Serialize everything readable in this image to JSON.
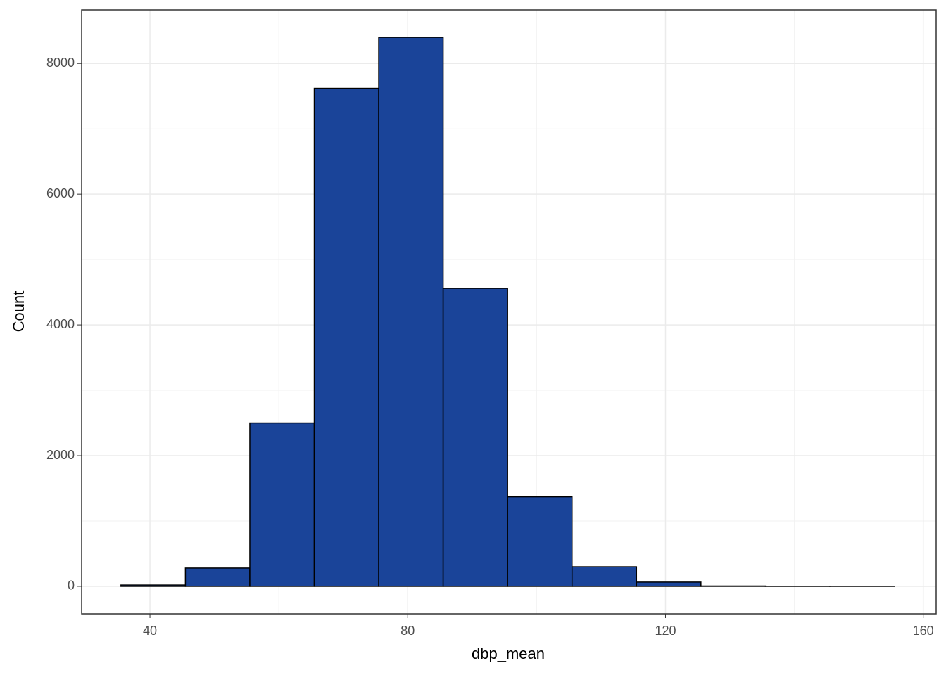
{
  "chart_data": {
    "type": "histogram",
    "x_label": "dbp_mean",
    "y_label": "Count",
    "bins": [
      35.5,
      45.5,
      55.5,
      65.5,
      75.5,
      85.5,
      95.5,
      105.5,
      115.5,
      125.5,
      135.5,
      145.5,
      155.5
    ],
    "values": [
      20,
      280,
      2500,
      7620,
      8400,
      4560,
      1370,
      300,
      65,
      5,
      2,
      1
    ],
    "color": "#1a4499",
    "edge_color": "#000000",
    "xlim": [
      29.4,
      162
    ],
    "xticks": [
      40,
      80,
      120,
      160
    ],
    "ylim": [
      -420,
      8820
    ],
    "yticks": [
      0,
      2000,
      4000,
      6000,
      8000
    ],
    "grid": true
  }
}
